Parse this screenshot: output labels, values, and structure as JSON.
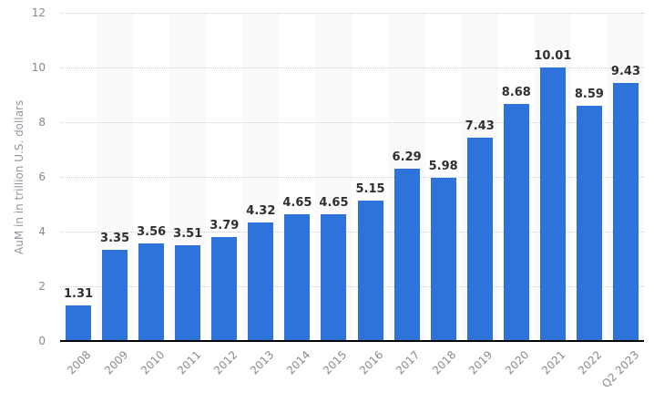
{
  "chart_data": {
    "type": "bar",
    "title": "",
    "xlabel": "",
    "ylabel": "AuM in in trillion U.S. dollars",
    "categories": [
      "2008",
      "2009",
      "2010",
      "2011",
      "2012",
      "2013",
      "2014",
      "2015",
      "2016",
      "2017",
      "2018",
      "2019",
      "2020",
      "2021",
      "2022",
      "Q2 2023"
    ],
    "values": [
      1.31,
      3.35,
      3.56,
      3.51,
      3.79,
      4.32,
      4.65,
      4.65,
      5.15,
      6.29,
      5.98,
      7.43,
      8.68,
      10.01,
      8.59,
      9.43
    ],
    "value_labels": [
      "1.31",
      "3.35",
      "3.56",
      "3.51",
      "3.79",
      "4.32",
      "4.65",
      "4.65",
      "5.15",
      "6.29",
      "5.98",
      "7.43",
      "8.68",
      "10.01",
      "8.59",
      "9.43"
    ],
    "ylim": [
      0,
      12
    ],
    "yticks": [
      0,
      2,
      4,
      6,
      8,
      10,
      12
    ],
    "grid": "horizontal-dotted",
    "legend": "none",
    "plot_background": "alternating vertical stripes starting at second category"
  },
  "colors": {
    "bar": "#2d73d9",
    "stripe": "#fafafa",
    "gridline": "#cccccc",
    "baseline": "#000000",
    "value_label": "#2f2f2f",
    "tick_label": "#8a8a8a",
    "axis_title": "#8f98a2",
    "background": "#ffffff"
  }
}
